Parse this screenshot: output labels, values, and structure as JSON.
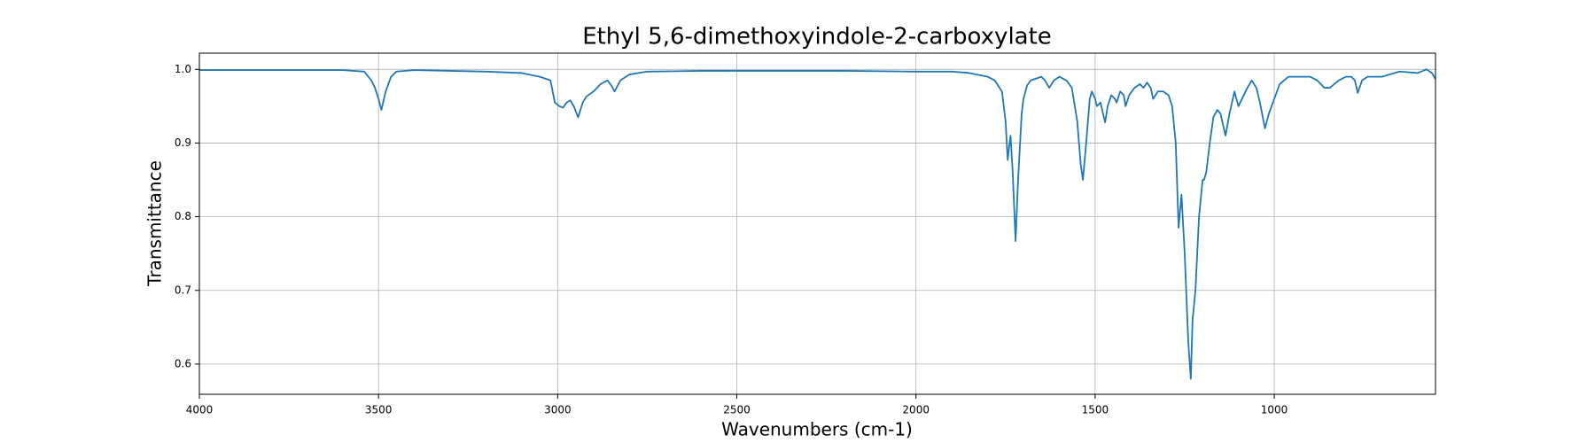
{
  "chart_data": {
    "type": "line",
    "title": "Ethyl 5,6-dimethoxyindole-2-carboxylate",
    "x_label": "Wavenumbers (cm-1)",
    "y_label": "Transmittance",
    "x": [
      4000,
      3900,
      3800,
      3700,
      3600,
      3540,
      3520,
      3510,
      3500,
      3492,
      3480,
      3465,
      3450,
      3400,
      3300,
      3200,
      3100,
      3050,
      3020,
      3008,
      2995,
      2985,
      2975,
      2965,
      2955,
      2943,
      2930,
      2920,
      2900,
      2880,
      2861,
      2850,
      2841,
      2825,
      2800,
      2750,
      2600,
      2400,
      2200,
      2000,
      1900,
      1850,
      1800,
      1780,
      1760,
      1750,
      1744,
      1740,
      1736,
      1730,
      1722,
      1715,
      1705,
      1700,
      1690,
      1680,
      1650,
      1640,
      1628,
      1615,
      1600,
      1580,
      1565,
      1550,
      1540,
      1534,
      1525,
      1515,
      1509,
      1500,
      1495,
      1485,
      1478,
      1472,
      1465,
      1455,
      1445,
      1440,
      1430,
      1420,
      1415,
      1405,
      1390,
      1375,
      1365,
      1355,
      1345,
      1338,
      1325,
      1310,
      1295,
      1285,
      1275,
      1267,
      1259,
      1250,
      1240,
      1233,
      1228,
      1220,
      1210,
      1200,
      1196,
      1190,
      1180,
      1170,
      1159,
      1150,
      1136,
      1125,
      1111,
      1100,
      1090,
      1075,
      1063,
      1050,
      1040,
      1026,
      1015,
      1000,
      985,
      960,
      930,
      900,
      880,
      860,
      845,
      820,
      800,
      785,
      775,
      767,
      755,
      740,
      700,
      650,
      600,
      575,
      560,
      550
    ],
    "series": [
      {
        "name": "Transmittance",
        "color": "#1f77b4",
        "values": [
          0.999,
          0.999,
          0.999,
          0.999,
          0.999,
          0.997,
          0.985,
          0.975,
          0.96,
          0.945,
          0.97,
          0.99,
          0.997,
          0.999,
          0.998,
          0.997,
          0.995,
          0.99,
          0.985,
          0.955,
          0.95,
          0.948,
          0.955,
          0.958,
          0.95,
          0.935,
          0.955,
          0.963,
          0.97,
          0.98,
          0.985,
          0.978,
          0.97,
          0.985,
          0.993,
          0.997,
          0.998,
          0.998,
          0.998,
          0.997,
          0.997,
          0.995,
          0.99,
          0.985,
          0.97,
          0.93,
          0.877,
          0.895,
          0.91,
          0.86,
          0.767,
          0.85,
          0.94,
          0.96,
          0.978,
          0.985,
          0.99,
          0.985,
          0.975,
          0.985,
          0.99,
          0.985,
          0.975,
          0.93,
          0.87,
          0.85,
          0.9,
          0.96,
          0.97,
          0.96,
          0.95,
          0.955,
          0.94,
          0.928,
          0.95,
          0.965,
          0.96,
          0.955,
          0.97,
          0.965,
          0.95,
          0.965,
          0.975,
          0.98,
          0.975,
          0.982,
          0.975,
          0.96,
          0.97,
          0.97,
          0.965,
          0.95,
          0.9,
          0.785,
          0.83,
          0.75,
          0.63,
          0.58,
          0.66,
          0.7,
          0.8,
          0.85,
          0.85,
          0.86,
          0.9,
          0.935,
          0.945,
          0.94,
          0.91,
          0.94,
          0.97,
          0.95,
          0.96,
          0.975,
          0.985,
          0.975,
          0.955,
          0.92,
          0.94,
          0.96,
          0.98,
          0.99,
          0.99,
          0.99,
          0.985,
          0.975,
          0.975,
          0.985,
          0.99,
          0.99,
          0.985,
          0.968,
          0.985,
          0.99,
          0.99,
          0.997,
          0.995,
          1.0,
          0.995,
          0.987
        ]
      }
    ],
    "xlim": [
      4000,
      550
    ],
    "ylim": [
      0.559,
      1.022
    ],
    "xticks": [
      4000,
      3500,
      3000,
      2500,
      2000,
      1500,
      1000
    ],
    "yticks": [
      0.6,
      0.7,
      0.8,
      0.9,
      {
        "value": 1,
        "label": "1.0"
      }
    ],
    "grid": true
  }
}
